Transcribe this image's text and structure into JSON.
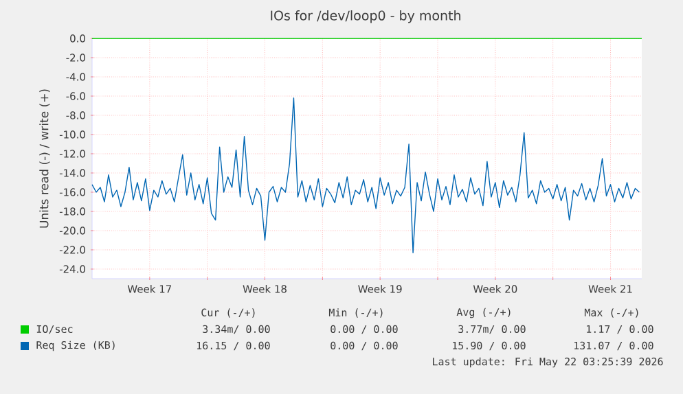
{
  "chart_data": {
    "type": "line",
    "title": "IOs for /dev/loop0 - by month",
    "ylabel": "Units read (-) / write (+)",
    "xlim": [
      "2026-04-20T00:00",
      "2026-05-23T09:36"
    ],
    "ylim": [
      -25,
      0
    ],
    "xticks": [
      {
        "value": "2026-04-23T12:00",
        "label": "Week 17"
      },
      {
        "value": "2026-04-27T00:00",
        "label": null
      },
      {
        "value": "2026-04-30T12:00",
        "label": "Week 18"
      },
      {
        "value": "2026-05-04T00:00",
        "label": null
      },
      {
        "value": "2026-05-07T12:00",
        "label": "Week 19"
      },
      {
        "value": "2026-05-11T00:00",
        "label": null
      },
      {
        "value": "2026-05-14T12:00",
        "label": "Week 20"
      },
      {
        "value": "2026-05-18T00:00",
        "label": null
      },
      {
        "value": "2026-05-21T12:00",
        "label": "Week 21"
      }
    ],
    "yticks": [
      {
        "value": 0,
        "label": "0.0"
      },
      {
        "value": -2,
        "label": "-2.0"
      },
      {
        "value": -4,
        "label": "-4.0"
      },
      {
        "value": -6,
        "label": "-6.0"
      },
      {
        "value": -8,
        "label": "-8.0"
      },
      {
        "value": -10,
        "label": "-10.0"
      },
      {
        "value": -12,
        "label": "-12.0"
      },
      {
        "value": -14,
        "label": "-14.0"
      },
      {
        "value": -16,
        "label": "-16.0"
      },
      {
        "value": -18,
        "label": "-18.0"
      },
      {
        "value": -20,
        "label": "-20.0"
      },
      {
        "value": -22,
        "label": "-22.0"
      },
      {
        "value": -24,
        "label": "-24.0"
      }
    ],
    "grid": true,
    "legend": "bottom left",
    "series": [
      {
        "name": "IO/sec",
        "color": "#00cc00",
        "x": [
          "2026-04-20T00:00",
          "2026-05-23T09:36"
        ],
        "values": [
          0,
          0
        ]
      },
      {
        "name": "Req Size (KB)",
        "color": "#0066b3",
        "x": [
          "2026-04-20T00:00",
          "2026-04-20T06:00",
          "2026-04-20T12:00",
          "2026-04-20T18:00",
          "2026-04-21T00:00",
          "2026-04-21T06:00",
          "2026-04-21T12:00",
          "2026-04-21T18:00",
          "2026-04-22T00:00",
          "2026-04-22T06:00",
          "2026-04-22T12:00",
          "2026-04-22T18:00",
          "2026-04-23T00:00",
          "2026-04-23T06:00",
          "2026-04-23T12:00",
          "2026-04-23T18:00",
          "2026-04-24T00:00",
          "2026-04-24T06:00",
          "2026-04-24T12:00",
          "2026-04-24T18:00",
          "2026-04-25T00:00",
          "2026-04-25T06:00",
          "2026-04-25T12:00",
          "2026-04-25T18:00",
          "2026-04-26T00:00",
          "2026-04-26T06:00",
          "2026-04-26T12:00",
          "2026-04-26T18:00",
          "2026-04-27T00:00",
          "2026-04-27T06:00",
          "2026-04-27T12:00",
          "2026-04-27T18:00",
          "2026-04-28T00:00",
          "2026-04-28T06:00",
          "2026-04-28T12:00",
          "2026-04-28T18:00",
          "2026-04-29T00:00",
          "2026-04-29T06:00",
          "2026-04-29T12:00",
          "2026-04-29T18:00",
          "2026-04-30T00:00",
          "2026-04-30T06:00",
          "2026-04-30T12:00",
          "2026-04-30T18:00",
          "2026-05-01T00:00",
          "2026-05-01T06:00",
          "2026-05-01T12:00",
          "2026-05-01T18:00",
          "2026-05-02T00:00",
          "2026-05-02T06:00",
          "2026-05-02T12:00",
          "2026-05-02T18:00",
          "2026-05-03T00:00",
          "2026-05-03T06:00",
          "2026-05-03T12:00",
          "2026-05-03T18:00",
          "2026-05-04T00:00",
          "2026-05-04T06:00",
          "2026-05-04T12:00",
          "2026-05-04T18:00",
          "2026-05-05T00:00",
          "2026-05-05T06:00",
          "2026-05-05T12:00",
          "2026-05-05T18:00",
          "2026-05-06T00:00",
          "2026-05-06T06:00",
          "2026-05-06T12:00",
          "2026-05-06T18:00",
          "2026-05-07T00:00",
          "2026-05-07T06:00",
          "2026-05-07T12:00",
          "2026-05-07T18:00",
          "2026-05-08T00:00",
          "2026-05-08T06:00",
          "2026-05-08T12:00",
          "2026-05-08T18:00",
          "2026-05-09T00:00",
          "2026-05-09T06:00",
          "2026-05-09T12:00",
          "2026-05-09T18:00",
          "2026-05-10T00:00",
          "2026-05-10T06:00",
          "2026-05-10T12:00",
          "2026-05-10T18:00",
          "2026-05-11T00:00",
          "2026-05-11T06:00",
          "2026-05-11T12:00",
          "2026-05-11T18:00",
          "2026-05-12T00:00",
          "2026-05-12T06:00",
          "2026-05-12T12:00",
          "2026-05-12T18:00",
          "2026-05-13T00:00",
          "2026-05-13T06:00",
          "2026-05-13T12:00",
          "2026-05-13T18:00",
          "2026-05-14T00:00",
          "2026-05-14T06:00",
          "2026-05-14T12:00",
          "2026-05-14T18:00",
          "2026-05-15T00:00",
          "2026-05-15T06:00",
          "2026-05-15T12:00",
          "2026-05-15T18:00",
          "2026-05-16T00:00",
          "2026-05-16T06:00",
          "2026-05-16T12:00",
          "2026-05-16T18:00",
          "2026-05-17T00:00",
          "2026-05-17T06:00",
          "2026-05-17T12:00",
          "2026-05-17T18:00",
          "2026-05-18T00:00",
          "2026-05-18T06:00",
          "2026-05-18T12:00",
          "2026-05-18T18:00",
          "2026-05-19T00:00",
          "2026-05-19T06:00",
          "2026-05-19T12:00",
          "2026-05-19T18:00",
          "2026-05-20T00:00",
          "2026-05-20T06:00",
          "2026-05-20T12:00",
          "2026-05-20T18:00",
          "2026-05-21T00:00",
          "2026-05-21T06:00",
          "2026-05-21T12:00",
          "2026-05-21T18:00",
          "2026-05-22T00:00",
          "2026-05-22T06:00",
          "2026-05-22T12:00",
          "2026-05-22T18:00",
          "2026-05-23T00:00",
          "2026-05-23T06:00"
        ],
        "values": [
          -15.2,
          -16.0,
          -15.5,
          -17.0,
          -14.2,
          -16.5,
          -15.8,
          -17.5,
          -16.0,
          -13.4,
          -16.8,
          -15.0,
          -16.9,
          -14.6,
          -17.9,
          -15.8,
          -16.5,
          -14.8,
          -16.2,
          -15.6,
          -17.0,
          -14.5,
          -12.1,
          -16.3,
          -14.0,
          -16.8,
          -15.2,
          -17.2,
          -14.5,
          -18.2,
          -18.9,
          -11.3,
          -16.0,
          -14.4,
          -15.5,
          -11.6,
          -16.5,
          -10.2,
          -15.8,
          -17.3,
          -15.6,
          -16.4,
          -21.0,
          -16.0,
          -15.4,
          -17.0,
          -15.5,
          -16.0,
          -13.0,
          -6.2,
          -16.5,
          -14.8,
          -17.0,
          -15.3,
          -16.8,
          -14.6,
          -17.5,
          -15.6,
          -16.2,
          -17.1,
          -15.0,
          -16.6,
          -14.4,
          -17.3,
          -15.8,
          -16.2,
          -14.7,
          -17.0,
          -15.5,
          -17.7,
          -14.5,
          -16.3,
          -15.0,
          -17.2,
          -15.8,
          -16.4,
          -15.5,
          -11.0,
          -22.3,
          -15.0,
          -16.9,
          -13.9,
          -16.2,
          -18.0,
          -14.6,
          -16.8,
          -15.4,
          -17.3,
          -14.2,
          -16.5,
          -15.7,
          -17.0,
          -14.5,
          -16.2,
          -15.6,
          -17.4,
          -12.8,
          -16.5,
          -15.0,
          -17.6,
          -14.8,
          -16.3,
          -15.5,
          -17.0,
          -14.2,
          -9.8,
          -16.6,
          -15.8,
          -17.2,
          -14.8,
          -16.0,
          -15.6,
          -16.7,
          -15.2,
          -16.9,
          -15.5,
          -18.9,
          -15.8,
          -16.4,
          -15.1,
          -16.8,
          -15.6,
          -17.0,
          -15.3,
          -12.5,
          -16.4,
          -15.2,
          -17.0,
          -15.6,
          -16.6,
          -15.0,
          -16.7,
          -15.6,
          -16.0
        ]
      }
    ],
    "annotations": [
      "Cur (-/+)",
      "Min (-/+)",
      "Avg (-/+)",
      "Max (-/+)",
      "3.34m/ 0.00",
      "0.00 / 0.00",
      "3.77m/ 0.00",
      "1.17 / 0.00",
      "16.15 / 0.00",
      "0.00 / 0.00",
      "15.90 / 0.00",
      "131.07 / 0.00",
      "Last update: Fri May 22 03:25:39 2026"
    ]
  }
}
